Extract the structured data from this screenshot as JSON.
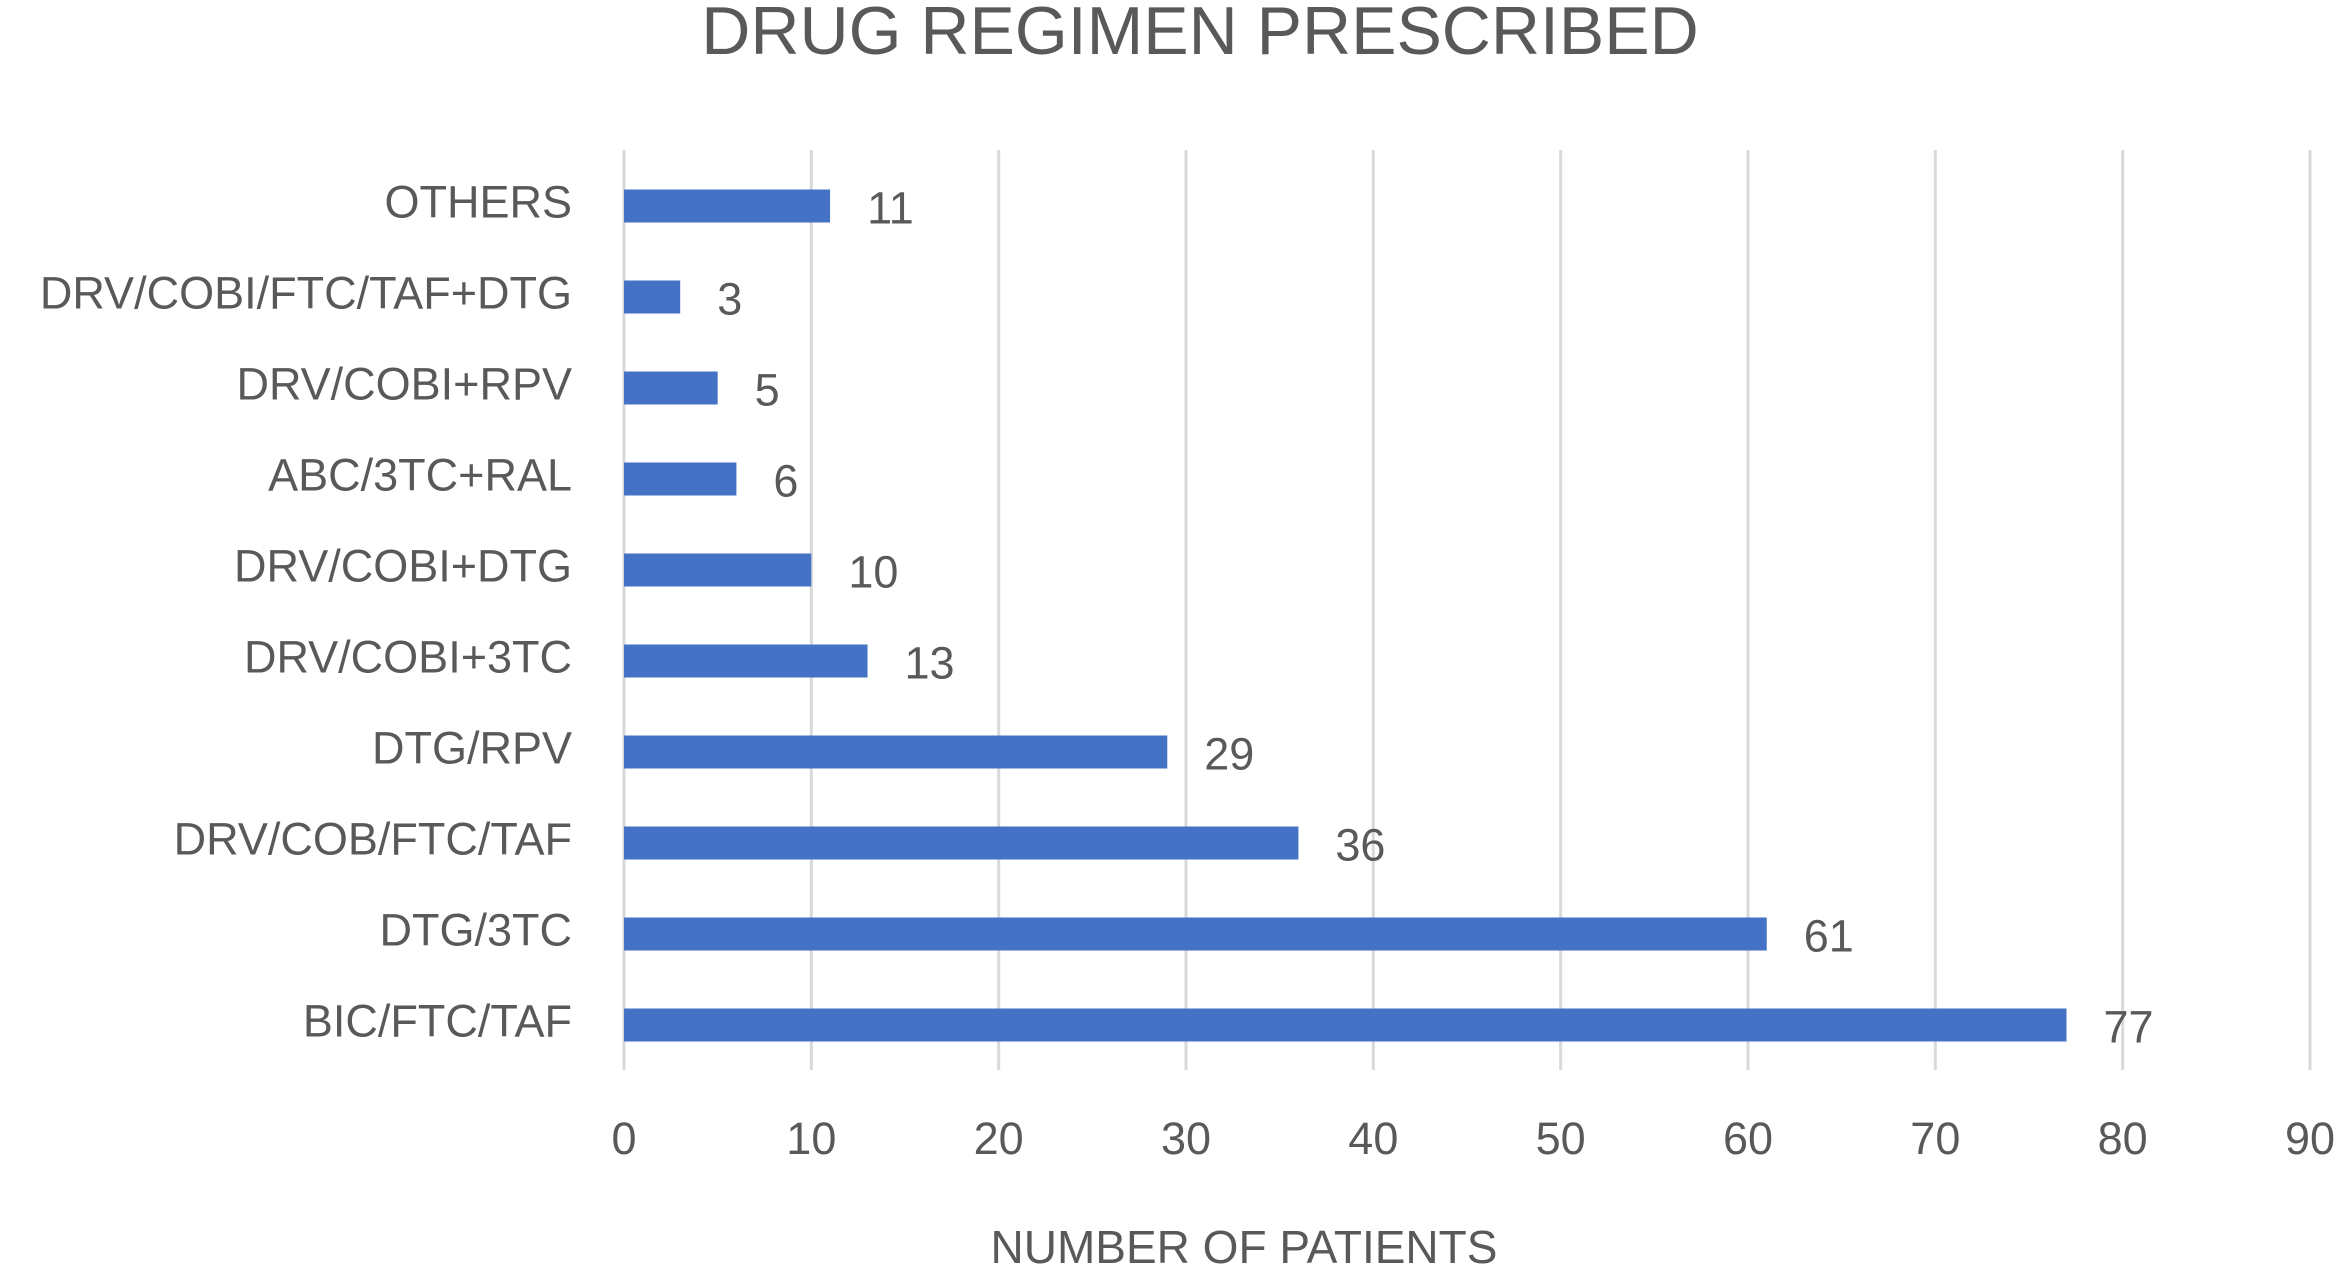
{
  "chart_data": {
    "type": "bar",
    "orientation": "horizontal",
    "title": "DRUG REGIMEN PRESCRIBED",
    "x_label": "NUMBER OF PATIENTS",
    "categories": [
      "OTHERS",
      "DRV/COBI/FTC/TAF+DTG",
      "DRV/COBI+RPV",
      "ABC/3TC+RAL",
      "DRV/COBI+DTG",
      "DRV/COBI+3TC",
      "DTG/RPV",
      "DRV/COB/FTC/TAF",
      "DTG/3TC",
      "BIC/FTC/TAF"
    ],
    "values": [
      11,
      3,
      5,
      6,
      10,
      13,
      29,
      36,
      61,
      77
    ],
    "color": "#4472c4",
    "xlim": [
      0,
      90
    ],
    "xticks": [
      0,
      10,
      20,
      30,
      40,
      50,
      60,
      70,
      80,
      90
    ],
    "grid": true
  }
}
